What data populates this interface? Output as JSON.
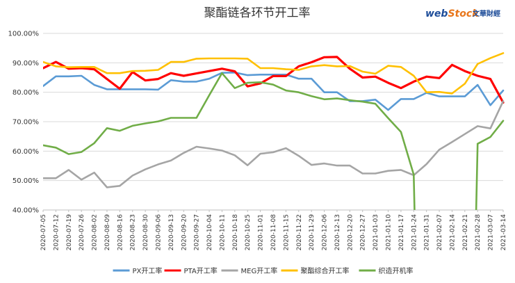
{
  "chart_data": {
    "type": "line",
    "title": "聚酯链各环节开工率",
    "xlabel": "",
    "ylabel": "",
    "ylim": [
      40,
      100
    ],
    "yticks": [
      "40.00%",
      "50.00%",
      "60.00%",
      "70.00%",
      "80.00%",
      "90.00%",
      "100.00%"
    ],
    "grid": true,
    "legend_position": "bottom",
    "x": [
      "2020-07-05",
      "2020-07-12",
      "2020-07-19",
      "2020-07-26",
      "2020-08-02",
      "2020-08-09",
      "2020-08-16",
      "2020-08-23",
      "2020-08-30",
      "2020-09-06",
      "2020-09-13",
      "2020-09-20",
      "2020-09-27",
      "2020-10-04",
      "2020-10-11",
      "2020-10-18",
      "2020-10-25",
      "2020-11-01",
      "2020-11-08",
      "2020-11-15",
      "2020-11-22",
      "2020-11-29",
      "2020-12-06",
      "2020-12-13",
      "2020-12-20",
      "2020-12-27",
      "2021-01-03",
      "2021-01-10",
      "2021-01-17",
      "2021-01-24",
      "2021-01-31",
      "2021-02-07",
      "2021-02-14",
      "2021-02-21",
      "2021-02-28",
      "2021-03-07",
      "2021-03-14"
    ],
    "series": [
      {
        "name": "PX开工率",
        "color": "#5b9bd5",
        "values": [
          82.1,
          85.4,
          85.4,
          85.6,
          82.5,
          81.0,
          81.0,
          81.0,
          81.0,
          80.9,
          84.1,
          83.6,
          83.6,
          84.6,
          86.6,
          86.7,
          85.8,
          86.0,
          86.0,
          86.0,
          84.6,
          84.6,
          80.0,
          80.0,
          77.0,
          77.0,
          77.5,
          74.0,
          77.7,
          77.7,
          79.8,
          78.6,
          78.6,
          78.6,
          82.5,
          75.6,
          80.6
        ]
      },
      {
        "name": "PTA开工率",
        "color": "#ff0000",
        "values": [
          88.2,
          90.3,
          88.0,
          88.2,
          87.8,
          84.5,
          81.2,
          86.9,
          84.0,
          84.5,
          86.5,
          85.6,
          86.4,
          87.2,
          88.0,
          87.1,
          82.0,
          83.0,
          85.5,
          85.5,
          88.8,
          90.2,
          91.9,
          92.0,
          88.0,
          85.0,
          85.3,
          83.2,
          81.4,
          83.6,
          85.3,
          84.8,
          89.3,
          87.2,
          85.6,
          84.5,
          76.5
        ]
      },
      {
        "name": "MEG开工率",
        "color": "#a5a5a5",
        "values": [
          50.8,
          50.8,
          53.6,
          50.3,
          52.7,
          47.7,
          48.2,
          51.7,
          53.8,
          55.5,
          56.8,
          59.4,
          61.5,
          60.9,
          60.2,
          58.6,
          55.2,
          59.1,
          59.6,
          61.0,
          58.4,
          55.3,
          55.8,
          55.1,
          55.1,
          52.4,
          52.4,
          53.3,
          53.6,
          51.8,
          55.6,
          60.5,
          63.1,
          65.8,
          68.5,
          67.7,
          77.0
        ]
      },
      {
        "name": "聚酯综合开工率",
        "color": "#ffc000",
        "values": [
          90.3,
          88.8,
          88.5,
          88.6,
          88.6,
          86.5,
          86.5,
          87.2,
          87.3,
          87.6,
          90.3,
          90.3,
          91.4,
          91.5,
          91.5,
          91.5,
          91.4,
          88.2,
          88.2,
          87.8,
          87.6,
          88.8,
          89.2,
          88.8,
          88.9,
          87.0,
          86.3,
          89.0,
          88.6,
          85.6,
          80.0,
          80.1,
          79.6,
          82.9,
          89.6,
          91.6,
          93.3
        ]
      },
      {
        "name": "织造开机率",
        "color": "#70ad47",
        "values": [
          62.0,
          61.2,
          59.0,
          59.7,
          62.7,
          67.8,
          66.9,
          68.6,
          69.4,
          70.1,
          71.3,
          71.3,
          71.3,
          79.0,
          86.5,
          81.4,
          83.2,
          83.4,
          82.6,
          80.6,
          80.0,
          78.7,
          77.6,
          77.9,
          77.3,
          76.8,
          76.1,
          71.2,
          66.5,
          52.0,
          null,
          null,
          null,
          null,
          62.5,
          64.8,
          70.3
        ]
      }
    ],
    "offscale_segments": [
      {
        "series": "织造开机率",
        "from": "2021-01-24",
        "note": "below axis minimum"
      },
      {
        "series": "织造开机率",
        "to": "2021-02-28",
        "note": "below axis minimum"
      }
    ]
  },
  "logo": {
    "web": "web",
    "stock": "Stock",
    "cn": "文華財經",
    "color_web": "#1f4e9a",
    "color_stock": "#e8761b"
  }
}
